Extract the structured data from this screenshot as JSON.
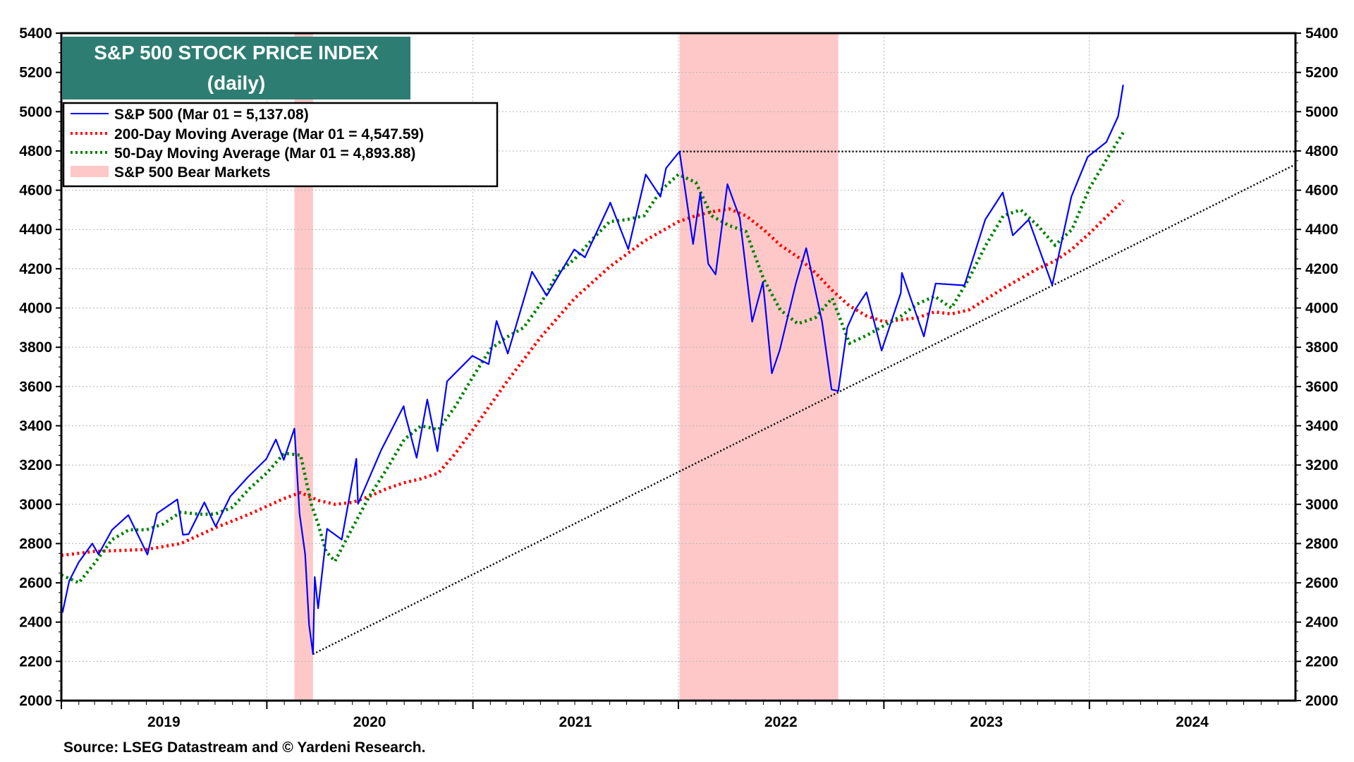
{
  "chart_data": {
    "type": "line",
    "title": "S&P 500 STOCK PRICE INDEX",
    "subtitle": "(daily)",
    "source": "Source: LSEG Datastream and © Yardeni Research.",
    "ylim": [
      2000,
      5400
    ],
    "y_ticks": [
      "2000",
      "2200",
      "2400",
      "2600",
      "2800",
      "3000",
      "3200",
      "3400",
      "3600",
      "3800",
      "4000",
      "4200",
      "4400",
      "4600",
      "4800",
      "5000",
      "5200",
      "5400"
    ],
    "x_range": [
      "2019-01-01",
      "2024-12-31"
    ],
    "x_year_labels": [
      "2019",
      "2020",
      "2021",
      "2022",
      "2023",
      "2024"
    ],
    "grid": true,
    "legend_position": "top-left",
    "legend": [
      {
        "label": "S&P 500 (Mar 01 = 5,137.08)",
        "color": "#0000ff",
        "style": "solid"
      },
      {
        "label": "200-Day Moving Average (Mar 01 = 4,547.59)",
        "color": "#ff0000",
        "style": "dotted"
      },
      {
        "label": "50-Day Moving Average (Mar 01 = 4,893.88)",
        "color": "#008000",
        "style": "dotted"
      },
      {
        "label": "S&P 500 Bear Markets",
        "color": "#ffc8c8",
        "style": "band"
      }
    ],
    "bear_markets": [
      {
        "start": "2020-02-19",
        "end": "2020-03-23"
      },
      {
        "start": "2022-01-03",
        "end": "2022-10-12"
      }
    ],
    "reference_lines": [
      {
        "name": "Jan 2022 high",
        "style": "dotted",
        "from": {
          "x": "2022-01-03",
          "y": 4797
        },
        "to": {
          "x": "2024-12-31",
          "y": 4797
        }
      },
      {
        "name": "trend line",
        "style": "dotted",
        "from": {
          "x": "2020-03-23",
          "y": 2237
        },
        "to": {
          "x": "2024-12-31",
          "y": 4730
        }
      }
    ],
    "series": [
      {
        "name": "S&P 500",
        "color": "#0000ff",
        "style": "solid",
        "x": [
          "2019-01-03",
          "2019-01-15",
          "2019-02-01",
          "2019-02-25",
          "2019-03-08",
          "2019-04-01",
          "2019-04-30",
          "2019-05-20",
          "2019-06-03",
          "2019-06-20",
          "2019-07-26",
          "2019-08-05",
          "2019-08-15",
          "2019-09-12",
          "2019-10-02",
          "2019-10-28",
          "2019-11-29",
          "2019-12-31",
          "2020-01-17",
          "2020-01-31",
          "2020-02-19",
          "2020-02-28",
          "2020-03-09",
          "2020-03-16",
          "2020-03-23",
          "2020-03-26",
          "2020-04-01",
          "2020-04-17",
          "2020-05-13",
          "2020-06-08",
          "2020-06-11",
          "2020-07-22",
          "2020-08-31",
          "2020-09-03",
          "2020-09-23",
          "2020-10-12",
          "2020-10-30",
          "2020-11-16",
          "2020-12-31",
          "2021-01-29",
          "2021-02-12",
          "2021-03-04",
          "2021-04-16",
          "2021-05-12",
          "2021-06-30",
          "2021-07-19",
          "2021-08-31",
          "2021-09-02",
          "2021-10-04",
          "2021-11-04",
          "2021-11-30",
          "2021-12-10",
          "2022-01-03",
          "2022-01-27",
          "2022-02-09",
          "2022-02-23",
          "2022-03-08",
          "2022-03-29",
          "2022-04-20",
          "2022-05-12",
          "2022-05-31",
          "2022-06-16",
          "2022-06-30",
          "2022-07-29",
          "2022-08-16",
          "2022-09-13",
          "2022-09-30",
          "2022-10-12",
          "2022-10-28",
          "2022-11-11",
          "2022-12-01",
          "2022-12-28",
          "2023-01-31",
          "2023-02-02",
          "2023-03-13",
          "2023-04-03",
          "2023-05-24",
          "2023-06-30",
          "2023-07-31",
          "2023-08-18",
          "2023-09-15",
          "2023-10-27",
          "2023-11-30",
          "2023-12-29",
          "2024-01-31",
          "2024-02-21",
          "2024-03-01"
        ],
        "values": [
          2448,
          2610,
          2705,
          2800,
          2745,
          2870,
          2945,
          2826,
          2744,
          2954,
          3025,
          2845,
          2848,
          3010,
          2887,
          3040,
          3141,
          3231,
          3330,
          3226,
          3386,
          2954,
          2746,
          2386,
          2237,
          2630,
          2470,
          2875,
          2820,
          3232,
          3002,
          3276,
          3500,
          3455,
          3237,
          3534,
          3270,
          3626,
          3756,
          3714,
          3934,
          3768,
          4185,
          4063,
          4298,
          4258,
          4523,
          4537,
          4300,
          4680,
          4567,
          4712,
          4797,
          4326,
          4587,
          4225,
          4171,
          4631,
          4459,
          3930,
          4132,
          3667,
          3785,
          4130,
          4305,
          3932,
          3585,
          3577,
          3901,
          3992,
          4080,
          3783,
          4077,
          4179,
          3855,
          4125,
          4115,
          4450,
          4588,
          4370,
          4450,
          4117,
          4568,
          4770,
          4845,
          4976,
          5137
        ]
      },
      {
        "name": "200-Day Moving Average",
        "color": "#ff0000",
        "style": "dotted",
        "x": [
          "2019-01-01",
          "2019-03-01",
          "2019-06-01",
          "2019-08-01",
          "2019-10-01",
          "2019-12-01",
          "2020-02-01",
          "2020-03-01",
          "2020-04-01",
          "2020-05-01",
          "2020-06-01",
          "2020-07-01",
          "2020-08-01",
          "2020-09-01",
          "2020-10-01",
          "2020-11-01",
          "2020-12-01",
          "2021-01-01",
          "2021-03-01",
          "2021-05-01",
          "2021-07-01",
          "2021-09-01",
          "2021-11-01",
          "2022-01-01",
          "2022-02-01",
          "2022-03-01",
          "2022-04-01",
          "2022-05-01",
          "2022-06-01",
          "2022-07-01",
          "2022-08-01",
          "2022-09-01",
          "2022-10-01",
          "2022-11-01",
          "2022-12-01",
          "2023-01-01",
          "2023-02-01",
          "2023-03-01",
          "2023-04-01",
          "2023-05-01",
          "2023-06-01",
          "2023-08-01",
          "2023-10-01",
          "2023-11-01",
          "2023-12-01",
          "2024-01-01",
          "2024-03-01"
        ],
        "values": [
          2740,
          2760,
          2770,
          2800,
          2880,
          2950,
          3030,
          3060,
          3020,
          3000,
          3010,
          3040,
          3080,
          3110,
          3130,
          3160,
          3260,
          3380,
          3620,
          3850,
          4050,
          4210,
          4340,
          4440,
          4470,
          4490,
          4505,
          4470,
          4400,
          4320,
          4260,
          4180,
          4090,
          4010,
          3960,
          3930,
          3940,
          3950,
          3980,
          3970,
          3990,
          4100,
          4200,
          4240,
          4300,
          4380,
          4548
        ]
      },
      {
        "name": "50-Day Moving Average",
        "color": "#008000",
        "style": "dotted",
        "x": [
          "2019-01-01",
          "2019-02-01",
          "2019-03-01",
          "2019-04-01",
          "2019-05-01",
          "2019-06-01",
          "2019-07-01",
          "2019-08-01",
          "2019-09-01",
          "2019-10-01",
          "2019-11-01",
          "2019-12-01",
          "2020-01-01",
          "2020-02-01",
          "2020-03-01",
          "2020-03-20",
          "2020-04-01",
          "2020-04-15",
          "2020-05-01",
          "2020-06-01",
          "2020-07-01",
          "2020-08-01",
          "2020-09-01",
          "2020-10-01",
          "2020-11-01",
          "2020-12-01",
          "2021-01-01",
          "2021-02-01",
          "2021-03-01",
          "2021-04-01",
          "2021-05-01",
          "2021-06-01",
          "2021-07-01",
          "2021-08-01",
          "2021-09-01",
          "2021-10-01",
          "2021-11-01",
          "2021-12-01",
          "2022-01-01",
          "2022-02-01",
          "2022-03-01",
          "2022-04-01",
          "2022-05-01",
          "2022-06-01",
          "2022-07-01",
          "2022-08-01",
          "2022-09-01",
          "2022-10-01",
          "2022-11-01",
          "2022-12-01",
          "2023-01-01",
          "2023-02-01",
          "2023-03-01",
          "2023-04-01",
          "2023-05-01",
          "2023-06-01",
          "2023-07-01",
          "2023-08-01",
          "2023-09-01",
          "2023-10-01",
          "2023-11-01",
          "2023-12-01",
          "2024-01-01",
          "2024-02-01",
          "2024-03-01"
        ],
        "values": [
          2640,
          2600,
          2700,
          2820,
          2870,
          2870,
          2900,
          2960,
          2950,
          2950,
          2985,
          3080,
          3160,
          3260,
          3250,
          3000,
          2900,
          2760,
          2710,
          2880,
          3040,
          3180,
          3330,
          3400,
          3380,
          3500,
          3650,
          3790,
          3850,
          3900,
          4020,
          4180,
          4250,
          4350,
          4440,
          4450,
          4470,
          4600,
          4680,
          4640,
          4470,
          4420,
          4390,
          4150,
          3990,
          3920,
          3950,
          4050,
          3820,
          3860,
          3910,
          3960,
          4020,
          4060,
          4000,
          4150,
          4320,
          4470,
          4500,
          4420,
          4320,
          4400,
          4610,
          4760,
          4894
        ]
      }
    ]
  }
}
